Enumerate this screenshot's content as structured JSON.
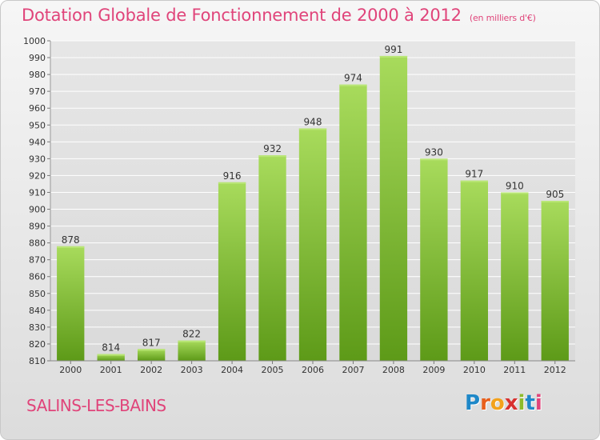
{
  "chart_data": {
    "type": "bar",
    "title": "Dotation Globale de Fonctionnement de 2000 à 2012",
    "subtitle": "(en milliers d'€)",
    "categories": [
      "2000",
      "2001",
      "2002",
      "2003",
      "2004",
      "2005",
      "2006",
      "2007",
      "2008",
      "2009",
      "2010",
      "2011",
      "2012"
    ],
    "values": [
      878,
      814,
      817,
      822,
      916,
      932,
      948,
      974,
      991,
      930,
      917,
      910,
      905
    ],
    "ylim": [
      810,
      1000
    ],
    "ytick_step": 10,
    "grid": true,
    "xlabel": "",
    "ylabel": ""
  },
  "commune": "SALINS-LES-BAINS",
  "logo": {
    "text": "Proxiti",
    "letters": [
      {
        "char": "P",
        "color": "#1e88c8"
      },
      {
        "char": "r",
        "color": "#e85f1c"
      },
      {
        "char": "o",
        "color": "#f3a21c"
      },
      {
        "char": "x",
        "color": "#d8312f"
      },
      {
        "char": "i",
        "color": "#8dbb2a"
      },
      {
        "char": "t",
        "color": "#1e88c8"
      },
      {
        "char": "i",
        "color": "#e0447a"
      }
    ]
  },
  "colors": {
    "accent": "#e0447a",
    "bar_light": "#a6d95a",
    "bar_dark": "#5f9c1a",
    "grid": "#ffffff",
    "plot_bg": "#e2e2e2"
  }
}
